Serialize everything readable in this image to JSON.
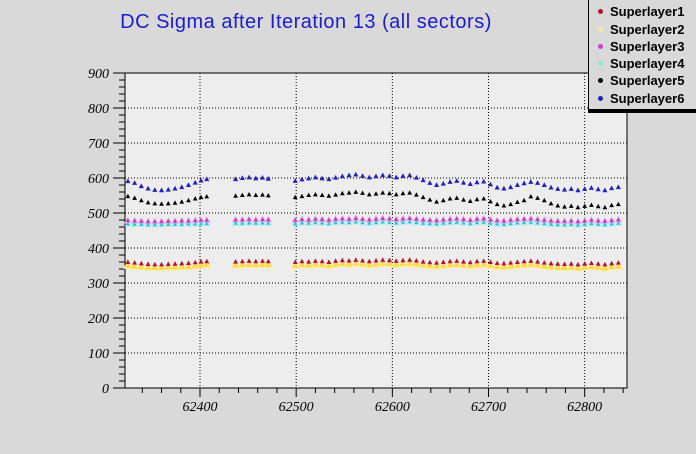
{
  "canvas": {
    "background": "#d9d9d9",
    "frame_fill": "#ededed",
    "title_color": "#1c1ccc"
  },
  "chart_data": {
    "type": "scatter",
    "title": "DC Sigma after Iteration 13 (all sectors)",
    "xlabel": "",
    "ylabel": "",
    "x_range": [
      62322,
      62844
    ],
    "y_range": [
      0,
      900
    ],
    "x_ticks": [
      62400,
      62500,
      62600,
      62700,
      62800
    ],
    "y_ticks": [
      0,
      100,
      200,
      300,
      400,
      500,
      600,
      700,
      800,
      900
    ],
    "minor_tick_step_x": 20,
    "minor_tick_step_y": 20,
    "grid": "dotted",
    "legend_position": "top-right",
    "marker": "triangle-up",
    "x": [
      62325,
      62332,
      62339,
      62346,
      62353,
      62360,
      62367,
      62374,
      62381,
      62388,
      62395,
      62401,
      62407,
      62437,
      62444,
      62451,
      62458,
      62465,
      62471,
      62499,
      62506,
      62513,
      62520,
      62527,
      62534,
      62541,
      62548,
      62555,
      62562,
      62569,
      62576,
      62583,
      62590,
      62597,
      62604,
      62611,
      62618,
      62625,
      62632,
      62639,
      62646,
      62653,
      62660,
      62667,
      62674,
      62681,
      62688,
      62695,
      62702,
      62709,
      62716,
      62723,
      62730,
      62737,
      62744,
      62751,
      62758,
      62765,
      62772,
      62779,
      62786,
      62793,
      62800,
      62807,
      62814,
      62821,
      62828,
      62835
    ],
    "series": [
      {
        "name": "Superlayer1",
        "color": "#b41428",
        "legend_color": "#b41428",
        "size": 2.6,
        "z": 7,
        "values": [
          360,
          358,
          356,
          354,
          353,
          353,
          354,
          355,
          356,
          357,
          359,
          361,
          362,
          361,
          362,
          363,
          362,
          363,
          362,
          360,
          362,
          361,
          363,
          362,
          360,
          363,
          365,
          364,
          366,
          364,
          362,
          364,
          366,
          365,
          363,
          365,
          366,
          364,
          361,
          359,
          358,
          360,
          362,
          363,
          361,
          359,
          362,
          363,
          360,
          357,
          356,
          358,
          360,
          362,
          363,
          361,
          358,
          356,
          355,
          354,
          355,
          353,
          355,
          357,
          355,
          353,
          356,
          358
        ]
      },
      {
        "name": "Superlayer2",
        "color": "#ffd84d",
        "legend_color": "#eeeeaa",
        "size": 3.5,
        "z": 2,
        "halo": {
          "color": "#fff0a0",
          "size": 5.0,
          "z": 1
        },
        "values": [
          351,
          349,
          347,
          346,
          345,
          345,
          346,
          346,
          347,
          348,
          350,
          352,
          353,
          352,
          353,
          354,
          353,
          354,
          353,
          351,
          353,
          352,
          354,
          353,
          351,
          354,
          356,
          355,
          357,
          355,
          353,
          355,
          357,
          356,
          354,
          356,
          357,
          355,
          352,
          350,
          349,
          351,
          353,
          354,
          352,
          350,
          353,
          354,
          351,
          348,
          347,
          349,
          351,
          353,
          354,
          352,
          349,
          347,
          346,
          345,
          346,
          344,
          346,
          348,
          346,
          344,
          347,
          349
        ]
      },
      {
        "name": "Superlayer3",
        "color": "#c838c8",
        "legend_color": "#c846c8",
        "size": 2.4,
        "z": 5,
        "halo": {
          "color": "#f2b3e8",
          "size": 4.0,
          "z": 3
        },
        "values": [
          479,
          478,
          477,
          476,
          476,
          476,
          477,
          477,
          478,
          478,
          479,
          480,
          480,
          481,
          481,
          482,
          481,
          482,
          481,
          480,
          482,
          481,
          483,
          482,
          480,
          483,
          484,
          483,
          485,
          483,
          481,
          483,
          485,
          484,
          482,
          484,
          485,
          483,
          481,
          480,
          479,
          481,
          483,
          484,
          482,
          480,
          483,
          484,
          481,
          479,
          478,
          480,
          482,
          483,
          484,
          482,
          480,
          478,
          477,
          477,
          478,
          476,
          478,
          480,
          478,
          477,
          479,
          481
        ]
      },
      {
        "name": "Superlayer4",
        "color": "#28c8d8",
        "legend_color": "#8ce8d0",
        "size": 2.2,
        "z": 6,
        "halo": {
          "color": "#a8ecee",
          "size": 3.5,
          "z": 4
        },
        "values": [
          469,
          468,
          468,
          467,
          467,
          467,
          468,
          468,
          468,
          469,
          469,
          470,
          470,
          471,
          471,
          472,
          471,
          472,
          471,
          470,
          472,
          471,
          473,
          472,
          470,
          473,
          474,
          473,
          475,
          473,
          471,
          473,
          475,
          474,
          472,
          474,
          475,
          473,
          471,
          470,
          469,
          471,
          473,
          474,
          472,
          470,
          473,
          474,
          471,
          469,
          468,
          470,
          472,
          473,
          474,
          472,
          470,
          468,
          467,
          467,
          468,
          466,
          468,
          470,
          468,
          467,
          469,
          471
        ]
      },
      {
        "name": "Superlayer5",
        "color": "#000000",
        "legend_color": "#000000",
        "size": 2.5,
        "z": 8,
        "values": [
          548,
          543,
          536,
          530,
          527,
          526,
          527,
          529,
          532,
          536,
          541,
          545,
          547,
          549,
          551,
          553,
          551,
          552,
          550,
          545,
          548,
          551,
          553,
          551,
          549,
          552,
          556,
          558,
          560,
          557,
          553,
          555,
          558,
          556,
          553,
          556,
          558,
          552,
          545,
          538,
          532,
          536,
          541,
          543,
          538,
          534,
          539,
          541,
          533,
          525,
          521,
          525,
          531,
          536,
          547,
          543,
          536,
          527,
          521,
          518,
          520,
          516,
          520,
          523,
          519,
          516,
          522,
          525
        ]
      },
      {
        "name": "Superlayer6",
        "color": "#2222b8",
        "legend_color": "#2222b8",
        "size": 2.7,
        "z": 9,
        "values": [
          591,
          586,
          577,
          570,
          566,
          565,
          567,
          570,
          574,
          580,
          587,
          593,
          597,
          597,
          600,
          602,
          599,
          601,
          598,
          592,
          596,
          599,
          602,
          599,
          597,
          601,
          605,
          608,
          610,
          606,
          602,
          605,
          608,
          606,
          602,
          606,
          608,
          601,
          594,
          586,
          580,
          584,
          589,
          592,
          587,
          583,
          588,
          590,
          582,
          573,
          570,
          574,
          580,
          585,
          589,
          586,
          580,
          573,
          569,
          567,
          569,
          565,
          569,
          572,
          568,
          565,
          571,
          574
        ]
      }
    ]
  }
}
